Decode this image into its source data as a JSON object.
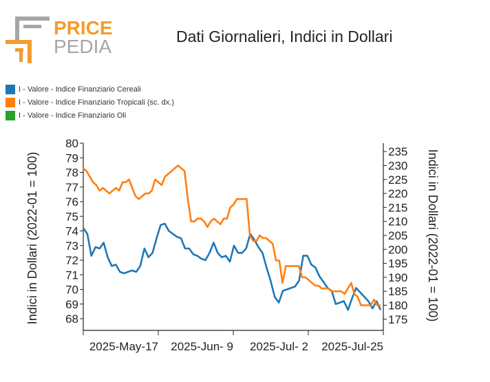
{
  "logo": {
    "word1": "PRICE",
    "word2": "PEDIA",
    "accent_color": "#f39c2e",
    "gray_color": "#a6a6a6"
  },
  "title": "Dati Giornalieri, Indici in Dollari",
  "legend": [
    {
      "label": "I - Valore - Indice Finanziario Cereali",
      "color": "#1f77b4"
    },
    {
      "label": "I - Valore - Indice Finanziario Tropicali (sc. dx.)",
      "color": "#ff7f0e"
    },
    {
      "label": "I - Valore - Indice Finanziario Oli",
      "color": "#2ca02c"
    }
  ],
  "chart_data": {
    "type": "line",
    "x_tick_labels": [
      "2025-May-17",
      "2025-Jun- 9",
      "2025-Jul- 2",
      "2025-Jul-25"
    ],
    "y_left": {
      "label": "Indici in Dollari (2022-01 = 100)",
      "min": 67.2,
      "max": 80,
      "ticks": [
        68,
        69,
        70,
        71,
        72,
        73,
        74,
        75,
        76,
        77,
        78,
        79,
        80
      ]
    },
    "y_right": {
      "label": "Indici in Dollari (2022-01 = 100)",
      "min": 171,
      "max": 238,
      "ticks": [
        175,
        180,
        185,
        190,
        195,
        200,
        205,
        210,
        215,
        220,
        225,
        230,
        235
      ]
    },
    "series": [
      {
        "name": "I - Valore - Indice Finanziario Cereali",
        "axis": "left",
        "color": "#1f77b4",
        "values": [
          74.2,
          73.8,
          72.3,
          72.9,
          72.8,
          73.2,
          72.2,
          71.6,
          71.7,
          71.2,
          71.1,
          71.2,
          71.3,
          71.2,
          71.6,
          72.8,
          72.2,
          72.5,
          73.5,
          74.4,
          74.5,
          74.0,
          73.8,
          73.6,
          73.5,
          72.8,
          72.8,
          72.4,
          72.3,
          72.1,
          72.0,
          72.5,
          73.2,
          72.5,
          72.2,
          72.3,
          71.9,
          73.0,
          72.5,
          72.5,
          72.8,
          73.8,
          73.4,
          72.9,
          72.5,
          71.5,
          70.6,
          69.5,
          69.1,
          69.9,
          70.0,
          70.1,
          70.2,
          70.6,
          72.3,
          72.3,
          71.7,
          71.5,
          70.9,
          70.5,
          70.1,
          69.9,
          69.0,
          69.1,
          69.2,
          68.6,
          69.4,
          70.1,
          69.8,
          69.5,
          69.2,
          68.7,
          69.2,
          68.6
        ]
      },
      {
        "name": "I - Valore - Indice Finanziario Tropicali (sc. dx.)",
        "axis": "right",
        "color": "#ff7f0e",
        "values": [
          229,
          228,
          226,
          224,
          223,
          221,
          222,
          221,
          220,
          221,
          222,
          221,
          224,
          224,
          225,
          222,
          219,
          218,
          219,
          220,
          220,
          221,
          225,
          224,
          223,
          226,
          227,
          228,
          229,
          230,
          229,
          228,
          218,
          210,
          210,
          211,
          211,
          210,
          208,
          210,
          211,
          210,
          209,
          211,
          211,
          215,
          216,
          218,
          218,
          218,
          218,
          205,
          203,
          203,
          205,
          204,
          204,
          203,
          202,
          196,
          196,
          188,
          194,
          194,
          194,
          194,
          194,
          190,
          190,
          189,
          188,
          187,
          187,
          186,
          186,
          186,
          185,
          185,
          185,
          185,
          184,
          186,
          188,
          184,
          183,
          180,
          180,
          180,
          180,
          182,
          180,
          180
        ]
      }
    ]
  }
}
